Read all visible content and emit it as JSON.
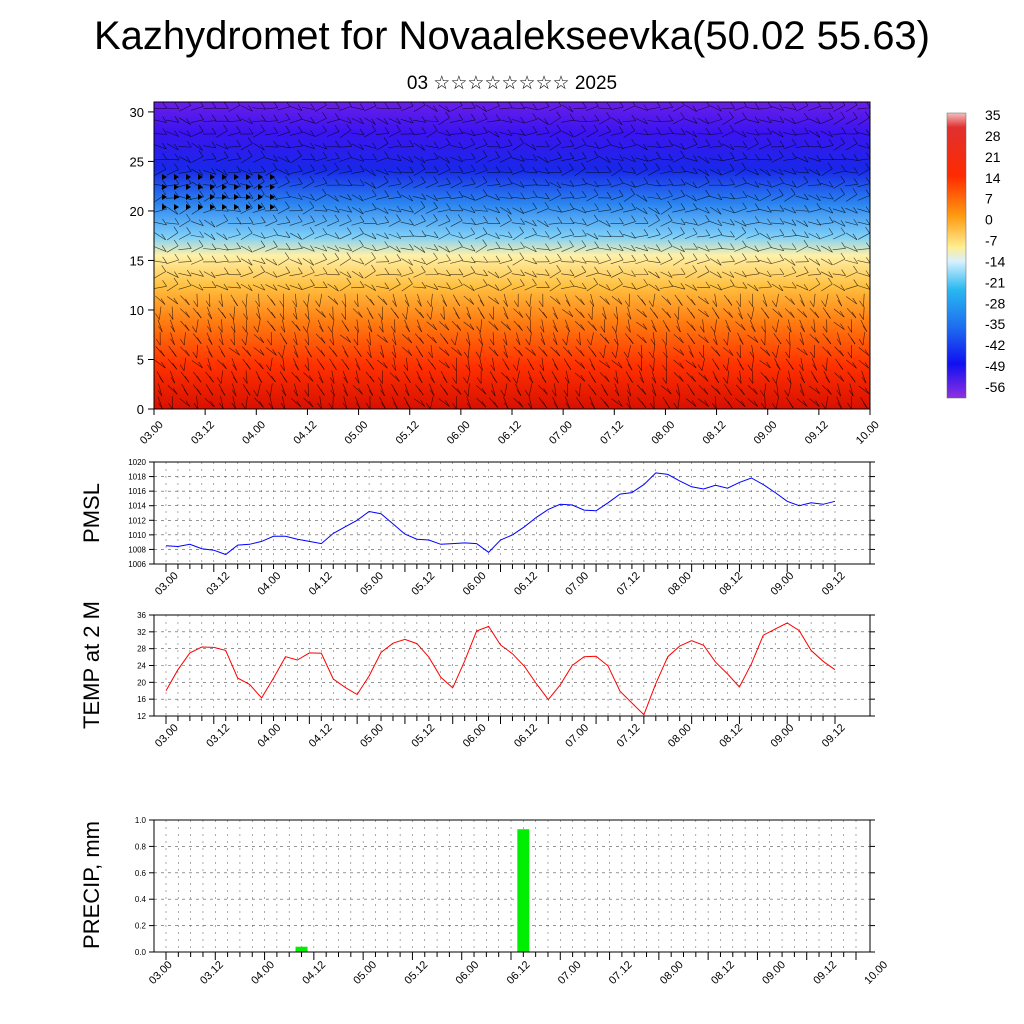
{
  "title": "Kazhydromet for Novaalekseevka(50.02 55.63)",
  "subtitle": "03 ☆☆☆☆☆☆☆☆ 2025",
  "time_labels": [
    "03.00",
    "03.12",
    "04.00",
    "04.12",
    "05.00",
    "05.12",
    "06.00",
    "06.12",
    "07.00",
    "07.12",
    "08.00",
    "08.12",
    "09.00",
    "09.12",
    "10.00"
  ],
  "colors": {
    "pmsl_line": "#0000ff",
    "temp_line": "#ff0000",
    "precip_bar": "#00ee00",
    "grid": "#555555"
  },
  "chart_data": [
    {
      "type": "heatmap",
      "title": "",
      "ylabel": "",
      "ylim": [
        0,
        31
      ],
      "yticks": [
        0,
        5,
        10,
        15,
        20,
        25,
        30
      ],
      "colorbar_labels": [
        "35",
        "28",
        "21",
        "14",
        "7",
        "0",
        "-7",
        "-14",
        "-21",
        "-28",
        "-35",
        "-42",
        "-49",
        "-56"
      ],
      "colorbar_range": [
        -63,
        42
      ],
      "overlay": "wind barbs",
      "y_levels": [
        0,
        5,
        10,
        15,
        20,
        25,
        30
      ],
      "temperature_profile": [
        32,
        24,
        12,
        -7,
        -35,
        -56,
        -60
      ]
    },
    {
      "type": "line",
      "title": "",
      "ylabel": "PMSL",
      "ylim": [
        1006,
        1020
      ],
      "yticks": [
        1006,
        1008,
        1010,
        1012,
        1014,
        1016,
        1018,
        1020
      ],
      "x_step_hours": 3,
      "series": [
        {
          "values": [
            1008.5,
            1008.4,
            1008.7,
            1008.1,
            1007.9,
            1007.3,
            1008.6,
            1008.7,
            1009.1,
            1009.8,
            1009.8,
            1009.4,
            1009.1,
            1008.8,
            1010.2,
            1011.1,
            1012.0,
            1013.2,
            1012.9,
            1011.5,
            1010.1,
            1009.4,
            1009.3,
            1008.7,
            1008.8,
            1008.9,
            1008.8,
            1007.6,
            1009.3,
            1010.0,
            1011.1,
            1012.4,
            1013.5,
            1014.2,
            1014.1,
            1013.4,
            1013.3,
            1014.4,
            1015.6,
            1015.8,
            1016.9,
            1018.5,
            1018.3,
            1017.4,
            1016.6,
            1016.3,
            1016.8,
            1016.4,
            1017.2,
            1017.8,
            1016.9,
            1015.8,
            1014.6,
            1014.0,
            1014.4,
            1014.2,
            1014.6
          ]
        }
      ]
    },
    {
      "type": "line",
      "title": "",
      "ylabel": "TEMP at 2 M",
      "ylim": [
        12,
        36
      ],
      "yticks": [
        12,
        16,
        20,
        24,
        28,
        32,
        36
      ],
      "x_step_hours": 3,
      "series": [
        {
          "values": [
            18,
            23,
            27,
            28.4,
            28.3,
            27.6,
            21,
            19.5,
            16.3,
            21,
            26.1,
            25.3,
            27,
            26.9,
            20.8,
            18.8,
            17.1,
            21.5,
            27.1,
            29.3,
            30.2,
            29.2,
            26,
            21.2,
            18.7,
            25.1,
            32.2,
            33.3,
            28.9,
            26.8,
            23.8,
            19.7,
            15.9,
            19.4,
            24,
            26.1,
            26.2,
            23.9,
            17.9,
            15.1,
            12.3,
            19.7,
            26.1,
            28.6,
            29.9,
            28.8,
            24.8,
            22,
            18.9,
            24.4,
            31.2,
            32.7,
            34.1,
            32.3,
            27.6,
            25,
            23
          ]
        }
      ]
    },
    {
      "type": "bar",
      "title": "",
      "ylabel": "PRECIP, mm",
      "ylim": [
        0,
        1.0
      ],
      "yticks": [
        "0.0",
        "0.2",
        "0.4",
        "0.6",
        "0.8",
        "1.0"
      ],
      "x_step_hours": 3,
      "series": [
        {
          "values": [
            0,
            0,
            0,
            0,
            0,
            0,
            0,
            0,
            0,
            0,
            0,
            0.04,
            0,
            0,
            0,
            0,
            0,
            0,
            0,
            0,
            0,
            0,
            0,
            0,
            0,
            0,
            0,
            0,
            0,
            0.93,
            0,
            0,
            0,
            0,
            0,
            0,
            0,
            0,
            0,
            0,
            0,
            0,
            0,
            0,
            0,
            0,
            0,
            0,
            0,
            0,
            0,
            0,
            0,
            0,
            0,
            0,
            0
          ]
        }
      ]
    }
  ]
}
